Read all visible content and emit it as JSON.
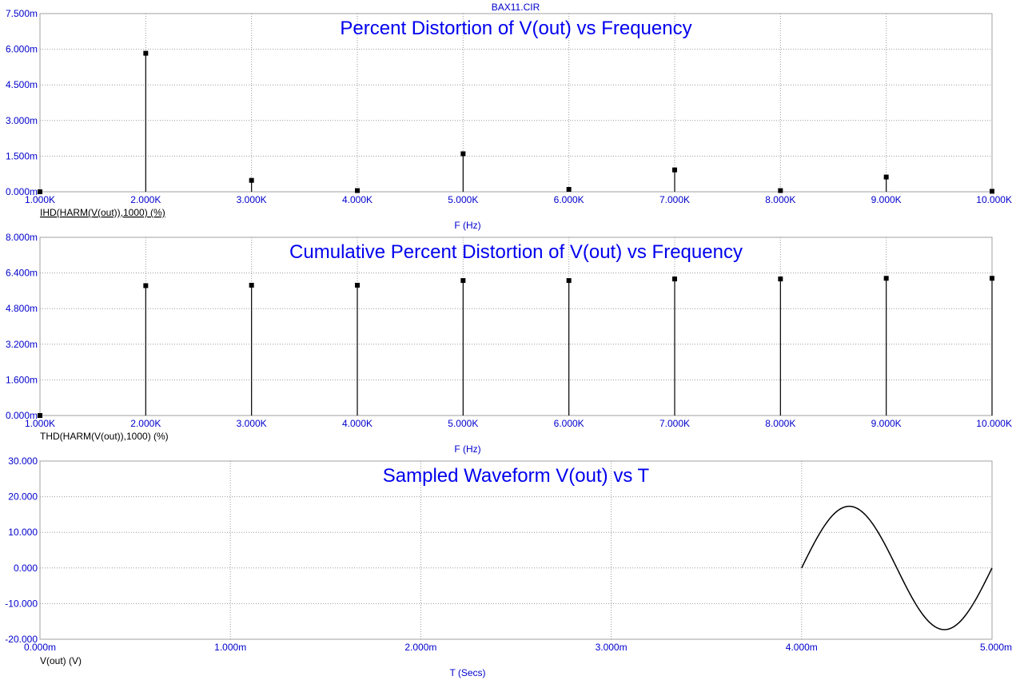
{
  "file_title": "BAX11.CIR",
  "chart_data": [
    {
      "type": "scatter",
      "title": "Percent Distortion of V(out) vs Frequency",
      "xlabel": "F (Hz)",
      "ylabel": "IHD(HARM(V(out)),1000) (%)",
      "xlim": [
        1000,
        10000
      ],
      "ylim": [
        0,
        0.0075
      ],
      "x_ticks": [
        "1.000K",
        "2.000K",
        "3.000K",
        "4.000K",
        "5.000K",
        "6.000K",
        "7.000K",
        "8.000K",
        "9.000K",
        "10.000K"
      ],
      "y_ticks": [
        "0.000m",
        "1.500m",
        "3.000m",
        "4.500m",
        "6.000m",
        "7.500m"
      ],
      "x": [
        1000,
        2000,
        3000,
        4000,
        5000,
        6000,
        7000,
        8000,
        9000,
        10000
      ],
      "values": [
        0,
        0.00583,
        0.00048,
        5e-05,
        0.0016,
        0.0001,
        0.00092,
        5e-05,
        0.00062,
        2e-05
      ],
      "grid": true
    },
    {
      "type": "scatter",
      "title": "Cumulative Percent Distortion of V(out) vs Frequency",
      "xlabel": "F (Hz)",
      "ylabel": "THD(HARM(V(out)),1000) (%)",
      "xlim": [
        1000,
        10000
      ],
      "ylim": [
        0,
        0.008
      ],
      "x_ticks": [
        "1.000K",
        "2.000K",
        "3.000K",
        "4.000K",
        "5.000K",
        "6.000K",
        "7.000K",
        "8.000K",
        "9.000K",
        "10.000K"
      ],
      "y_ticks": [
        "0.000m",
        "1.600m",
        "3.200m",
        "4.800m",
        "6.400m",
        "8.000m"
      ],
      "x": [
        1000,
        2000,
        3000,
        4000,
        5000,
        6000,
        7000,
        8000,
        9000,
        10000
      ],
      "values": [
        0,
        0.00583,
        0.00585,
        0.00585,
        0.00606,
        0.00606,
        0.00613,
        0.00613,
        0.00616,
        0.00616
      ],
      "grid": true
    },
    {
      "type": "line",
      "title": "Sampled Waveform  V(out) vs T",
      "xlabel": "T (Secs)",
      "ylabel": "V(out) (V)",
      "xlim": [
        0,
        0.005
      ],
      "ylim": [
        -20,
        30
      ],
      "x_ticks": [
        "0.000m",
        "1.000m",
        "2.000m",
        "3.000m",
        "4.000m",
        "5.000m"
      ],
      "y_ticks": [
        "-20.000",
        "-10.000",
        "0.000",
        "10.000",
        "20.000",
        "30.000"
      ],
      "series": [
        {
          "amplitude": 17.3,
          "t_start": 0.004,
          "t_end": 0.005,
          "frequency": 1000
        }
      ],
      "grid": true
    }
  ]
}
